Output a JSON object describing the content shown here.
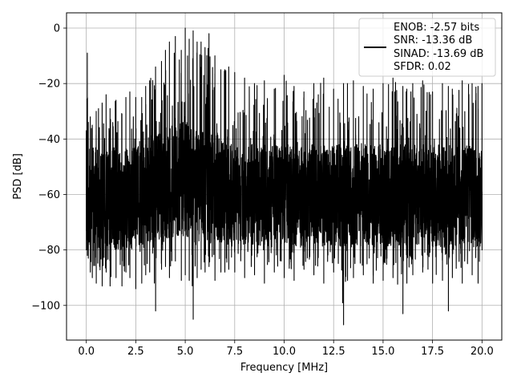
{
  "chart_data": {
    "type": "line",
    "title": "",
    "xlabel": "Frequency [MHz]",
    "ylabel": "PSD [dB]",
    "xlim": [
      -1.0,
      21.0
    ],
    "ylim": [
      -112.5,
      5.5
    ],
    "xticks": [
      0.0,
      2.5,
      5.0,
      7.5,
      10.0,
      12.5,
      15.0,
      17.5,
      20.0
    ],
    "xtick_labels": [
      "0.0",
      "2.5",
      "5.0",
      "7.5",
      "10.0",
      "12.5",
      "15.0",
      "17.5",
      "20.0"
    ],
    "yticks": [
      0,
      -20,
      -40,
      -60,
      -80,
      -100
    ],
    "ytick_labels": [
      "0",
      "−20",
      "−40",
      "−60",
      "−80",
      "−100"
    ],
    "grid": true,
    "legend": {
      "placement": "top-right",
      "entries": [
        "ENOB: -2.57 bits",
        "SNR: -13.36 dB",
        "SINAD: -13.69 dB",
        "SFDR: 0.02"
      ]
    },
    "series": [
      {
        "color": "#000000",
        "x": [
          0.0,
          0.05,
          0.1,
          0.2,
          0.3,
          0.5,
          0.8,
          1.0,
          1.2,
          1.5,
          1.8,
          2.0,
          2.2,
          2.5,
          2.8,
          3.0,
          3.2,
          3.5,
          3.8,
          4.0,
          4.2,
          4.5,
          4.8,
          5.0,
          5.2,
          5.4,
          5.6,
          5.8,
          6.0,
          6.2,
          6.5,
          6.8,
          7.0,
          7.2,
          7.5,
          8.0,
          8.5,
          9.0,
          9.5,
          10.0,
          10.5,
          11.0,
          11.5,
          12.0,
          12.5,
          13.0,
          13.2,
          13.5,
          14.0,
          14.5,
          15.0,
          15.5,
          16.0,
          16.2,
          16.5,
          17.0,
          17.5,
          18.0,
          18.3,
          18.5,
          19.0,
          19.5,
          19.8,
          20.0
        ],
        "y_max": [
          -37,
          -9,
          -34,
          -32,
          -35,
          -30,
          -27,
          -24,
          -29,
          -26,
          -31,
          -25,
          -23,
          -25,
          -25,
          -21,
          -19,
          -14,
          -12,
          -8,
          -5,
          -3,
          -8,
          0,
          -4,
          -1,
          -5,
          -5,
          -7,
          -2,
          -10,
          -15,
          -15,
          -14,
          -16,
          -18,
          -20,
          -19,
          -22,
          -17,
          -21,
          -23,
          -20,
          -18,
          -22,
          -20,
          -20,
          -19,
          -21,
          -22,
          -20,
          -18,
          -21,
          -22,
          -20,
          -19,
          -23,
          -20,
          -21,
          -22,
          -19,
          -20,
          -21,
          -20
        ],
        "y_min": [
          -80,
          -82,
          -83,
          -88,
          -90,
          -92,
          -93,
          -88,
          -93,
          -90,
          -93,
          -88,
          -90,
          -94,
          -92,
          -89,
          -88,
          -102,
          -87,
          -86,
          -90,
          -84,
          -91,
          -89,
          -91,
          -105,
          -90,
          -87,
          -88,
          -86,
          -91,
          -88,
          -88,
          -87,
          -88,
          -90,
          -89,
          -92,
          -88,
          -90,
          -91,
          -87,
          -89,
          -92,
          -88,
          -107,
          -91,
          -90,
          -89,
          -92,
          -91,
          -90,
          -103,
          -92,
          -89,
          -88,
          -92,
          -91,
          -102,
          -90,
          -92,
          -89,
          -92,
          -80
        ],
        "y_band_high": [
          -43,
          -45,
          -44,
          -43,
          -44,
          -45,
          -44,
          -43,
          -44,
          -42,
          -44,
          -43,
          -44,
          -42,
          -42,
          -42,
          -40,
          -39,
          -37,
          -36,
          -35,
          -35,
          -34,
          -34,
          -35,
          -35,
          -35,
          -36,
          -36,
          -37,
          -38,
          -39,
          -40,
          -40,
          -41,
          -41,
          -41,
          -42,
          -42,
          -42,
          -42,
          -42,
          -42,
          -42,
          -42,
          -42,
          -42,
          -42,
          -42,
          -42,
          -42,
          -42,
          -42,
          -42,
          -42,
          -42,
          -42,
          -42,
          -42,
          -42,
          -42,
          -42,
          -42,
          -42
        ],
        "y_band_low": [
          -78,
          -80,
          -79,
          -78,
          -79,
          -80,
          -79,
          -80,
          -79,
          -80,
          -80,
          -79,
          -80,
          -79,
          -79,
          -78,
          -78,
          -77,
          -76,
          -76,
          -76,
          -75,
          -75,
          -75,
          -76,
          -76,
          -76,
          -76,
          -76,
          -77,
          -77,
          -77,
          -78,
          -78,
          -78,
          -78,
          -78,
          -79,
          -79,
          -78,
          -79,
          -79,
          -78,
          -79,
          -79,
          -79,
          -79,
          -79,
          -79,
          -79,
          -79,
          -79,
          -79,
          -79,
          -79,
          -79,
          -79,
          -79,
          -79,
          -79,
          -79,
          -79,
          -79,
          -76
        ]
      }
    ]
  }
}
